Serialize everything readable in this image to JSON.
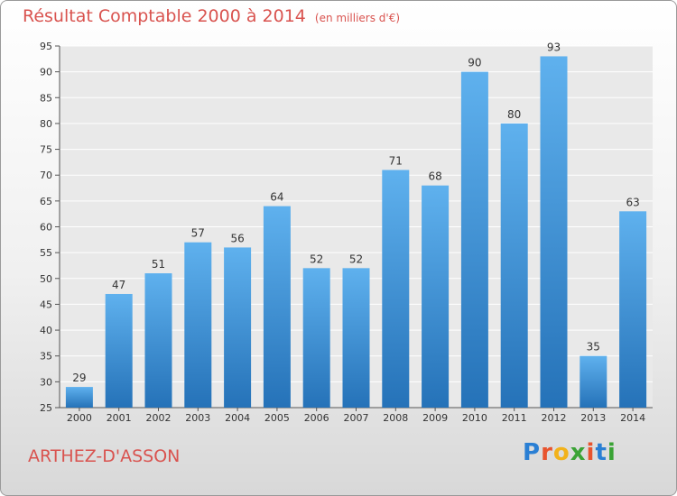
{
  "title": "Résultat Comptable 2000 à 2014",
  "subtitle": "(en milliers d'€)",
  "location": "ARTHEZ-D'ASSON",
  "logo": {
    "letters": [
      "P",
      "r",
      "o",
      "x",
      "i",
      "t",
      "i"
    ],
    "colors": [
      "#2a7fd4",
      "#e8542e",
      "#f2b21b",
      "#3aa335",
      "#e8542e",
      "#2a7fd4",
      "#3aa335"
    ]
  },
  "chart_data": {
    "type": "bar",
    "categories": [
      "2000",
      "2001",
      "2002",
      "2003",
      "2004",
      "2005",
      "2006",
      "2007",
      "2008",
      "2009",
      "2010",
      "2011",
      "2012",
      "2013",
      "2014"
    ],
    "values": [
      29,
      47,
      51,
      57,
      56,
      64,
      52,
      52,
      71,
      68,
      90,
      80,
      93,
      35,
      63
    ],
    "ylim": [
      25,
      95
    ],
    "yticks": [
      25,
      30,
      35,
      40,
      45,
      50,
      55,
      60,
      65,
      70,
      75,
      80,
      85,
      90,
      95
    ],
    "grid": true,
    "bar_color": "#3d8fd6"
  }
}
